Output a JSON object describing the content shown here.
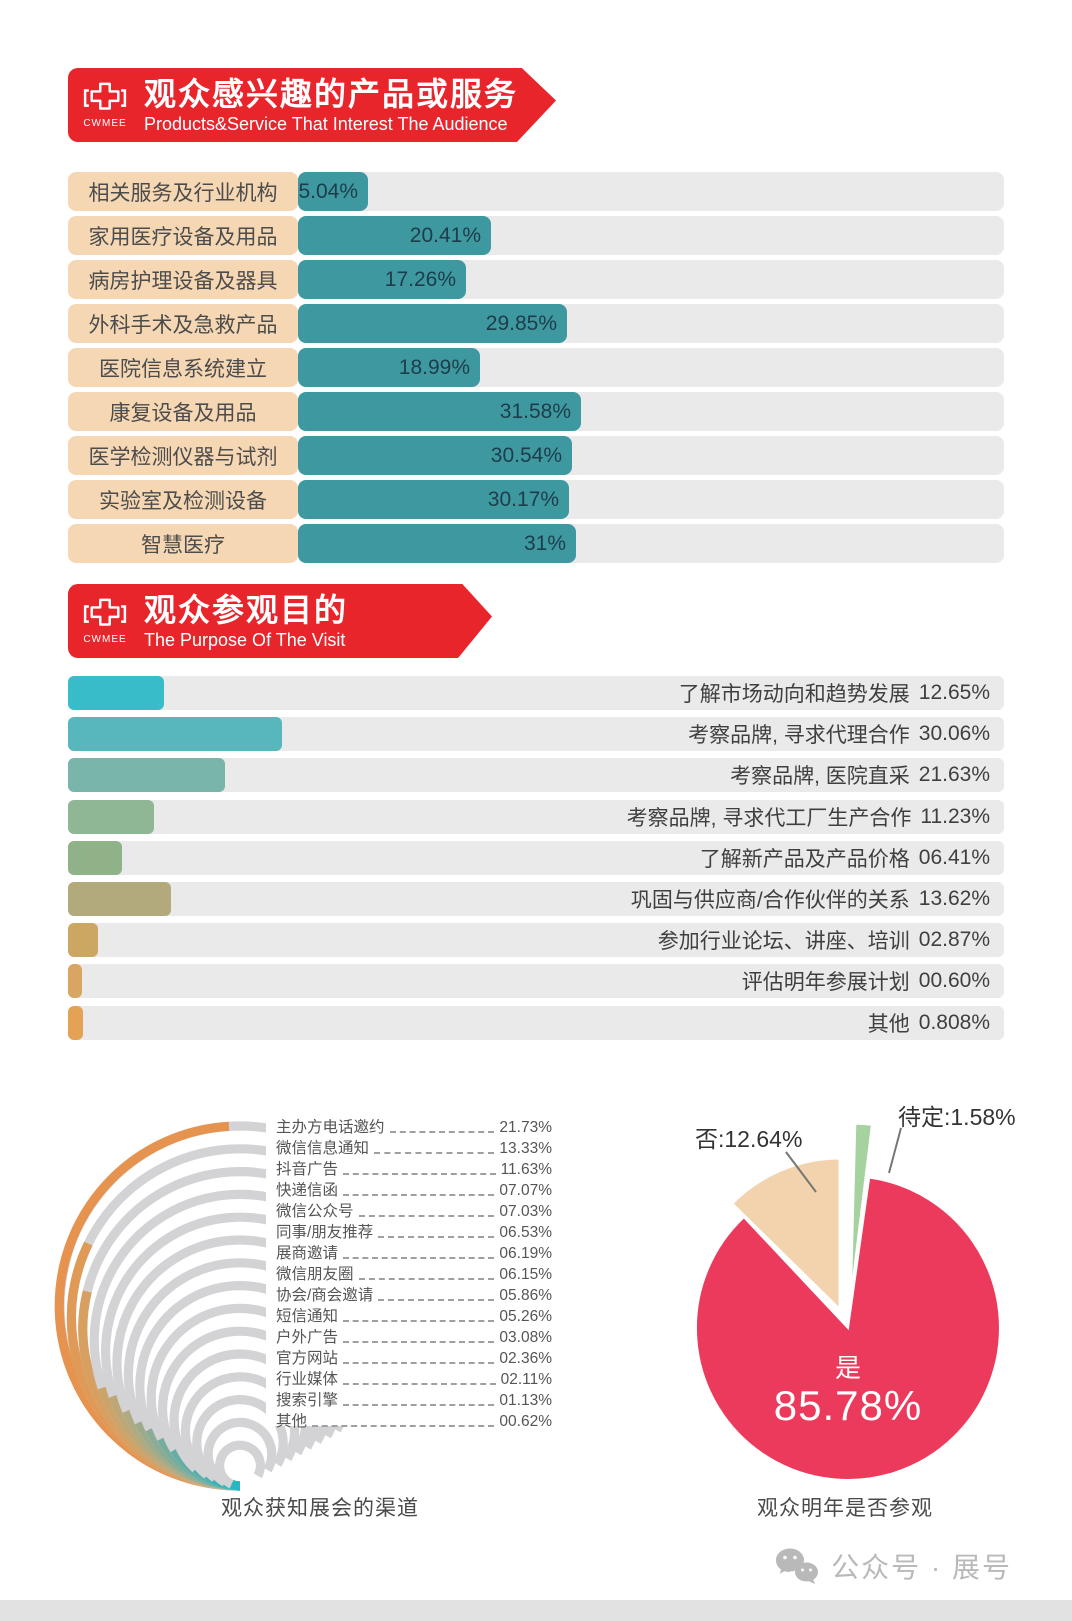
{
  "banner1": {
    "title": "观众感兴趣的产品或服务",
    "subtitle": "Products&Service That Interest The Audience",
    "logo_text": "CWMEE"
  },
  "banner2": {
    "title": "观众参观目的",
    "subtitle": "The Purpose Of The Visit",
    "logo_text": "CWMEE"
  },
  "captions": {
    "channels": "观众获知展会的渠道",
    "return_visit": "观众明年是否参观"
  },
  "footer": {
    "label": "公众号 · 展号"
  },
  "colors": {
    "banner_red": "#e9252c",
    "interest_bar": "#3e98a0",
    "interest_label_bg": "#f6d7b4",
    "track_gray": "#eaeaeb",
    "fan_gray": "#d3d3d5",
    "pie_red": "#ec3a5c",
    "pie_peach": "#f2d3ae",
    "pie_green": "#a6d2a0",
    "purpose_palette": [
      "#39bcca",
      "#58b7bd",
      "#79b5ab",
      "#90b795",
      "#8fb289",
      "#b2aa7c",
      "#cba761",
      "#d8a662",
      "#e3a254"
    ],
    "fan_palette": [
      "#e69350",
      "#e09a58",
      "#d7a061",
      "#cba46c",
      "#bda777",
      "#aeaa82",
      "#9cab8c",
      "#8aac95",
      "#77ad9d",
      "#64aea5",
      "#52afab",
      "#41b1b2",
      "#34b3b8",
      "#2cb5bd",
      "#28b7c1"
    ]
  },
  "chart_data": [
    {
      "id": "interest",
      "type": "bar",
      "title": "观众感兴趣的产品或服务",
      "categories": [
        "相关服务及行业机构",
        "家用医疗设备及用品",
        "病房护理设备及器具",
        "外科手术及急救产品",
        "医院信息系统建立",
        "康复设备及用品",
        "医学检测仪器与试剂",
        "实验室及检测设备",
        "智慧医疗"
      ],
      "values": [
        5.04,
        20.41,
        17.26,
        29.85,
        18.99,
        31.58,
        30.54,
        30.17,
        31
      ],
      "value_labels": [
        "5.04%",
        "20.41%",
        "17.26%",
        "29.85%",
        "18.99%",
        "31.58%",
        "30.54%",
        "30.17%",
        "31%"
      ],
      "orientation": "horizontal"
    },
    {
      "id": "purpose",
      "type": "bar",
      "title": "观众参观目的",
      "categories": [
        "了解市场动向和趋势发展",
        "考察品牌, 寻求代理合作",
        "考察品牌, 医院直采",
        "考察品牌, 寻求代工厂生产合作",
        "了解新产品及产品价格",
        "巩固与供应商/合作伙伴的关系",
        "参加行业论坛、讲座、培训",
        "评估明年参展计划",
        "其他"
      ],
      "values": [
        12.65,
        30.06,
        21.63,
        11.23,
        6.41,
        13.62,
        2.87,
        0.6,
        0.808
      ],
      "value_labels": [
        "12.65%",
        "30.06%",
        "21.63%",
        "11.23%",
        "06.41%",
        "13.62%",
        "02.87%",
        "00.60%",
        "0.808%"
      ],
      "orientation": "horizontal"
    },
    {
      "id": "channels",
      "type": "radial-bar",
      "title": "观众获知展会的渠道",
      "categories": [
        "主办方电话邀约",
        "微信信息通知",
        "抖音广告",
        "快递信函",
        "微信公众号",
        "同事/朋友推荐",
        "展商邀请",
        "微信朋友圈",
        "协会/商会邀请",
        "短信通知",
        "户外广告",
        "官方网站",
        "行业媒体",
        "搜索引擎",
        "其他"
      ],
      "values": [
        21.73,
        13.33,
        11.63,
        7.07,
        7.03,
        6.53,
        6.19,
        6.15,
        5.86,
        5.26,
        3.08,
        2.36,
        2.11,
        1.13,
        0.62
      ],
      "value_labels": [
        "21.73%",
        "13.33%",
        "11.63%",
        "07.07%",
        "07.03%",
        "06.53%",
        "06.19%",
        "06.15%",
        "05.86%",
        "05.26%",
        "03.08%",
        "02.36%",
        "02.11%",
        "01.13%",
        "00.62%"
      ]
    },
    {
      "id": "return_visit",
      "type": "pie",
      "title": "观众明年是否参观",
      "slices": [
        {
          "label": "是",
          "value": 85.78,
          "display": "85.78%"
        },
        {
          "label": "否",
          "value": 12.64,
          "display": "否:12.64%"
        },
        {
          "label": "待定",
          "value": 1.58,
          "display": "待定:1.58%"
        }
      ]
    }
  ]
}
